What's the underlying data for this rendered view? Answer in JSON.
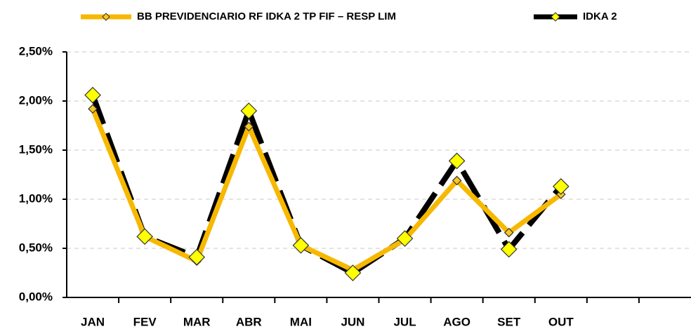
{
  "chart_data": {
    "type": "line",
    "categories": [
      "JAN",
      "FEV",
      "MAR",
      "ABR",
      "MAI",
      "JUN",
      "JUL",
      "AGO",
      "SET",
      "OUT",
      null,
      null
    ],
    "series": [
      {
        "name": "IDKA 2",
        "color": "#000000",
        "marker_color": "#ffff00",
        "line_style": "dashed",
        "values": [
          2.06,
          0.62,
          0.41,
          1.9,
          0.53,
          0.25,
          0.6,
          1.39,
          0.49,
          1.13,
          null,
          null
        ]
      },
      {
        "name": "BB PREVIDENCIARIO RF IDKA 2 TP FIF – RESP LIM",
        "color": "#f7b800",
        "marker_color": "#f7c820",
        "line_style": "solid",
        "values": [
          1.92,
          0.62,
          0.37,
          1.74,
          0.53,
          0.28,
          0.59,
          1.19,
          0.66,
          1.05,
          null,
          null
        ]
      }
    ],
    "ylim": [
      0,
      2.5
    ],
    "yticks": [
      {
        "value": 0,
        "label": "0,00%"
      },
      {
        "value": 0.5,
        "label": "0,50%"
      },
      {
        "value": 1.0,
        "label": "1,00%"
      },
      {
        "value": 1.5,
        "label": "1,50%"
      },
      {
        "value": 2.0,
        "label": "2,00%"
      },
      {
        "value": 2.5,
        "label": "2,50%"
      }
    ],
    "grid": true,
    "legend": "top"
  }
}
